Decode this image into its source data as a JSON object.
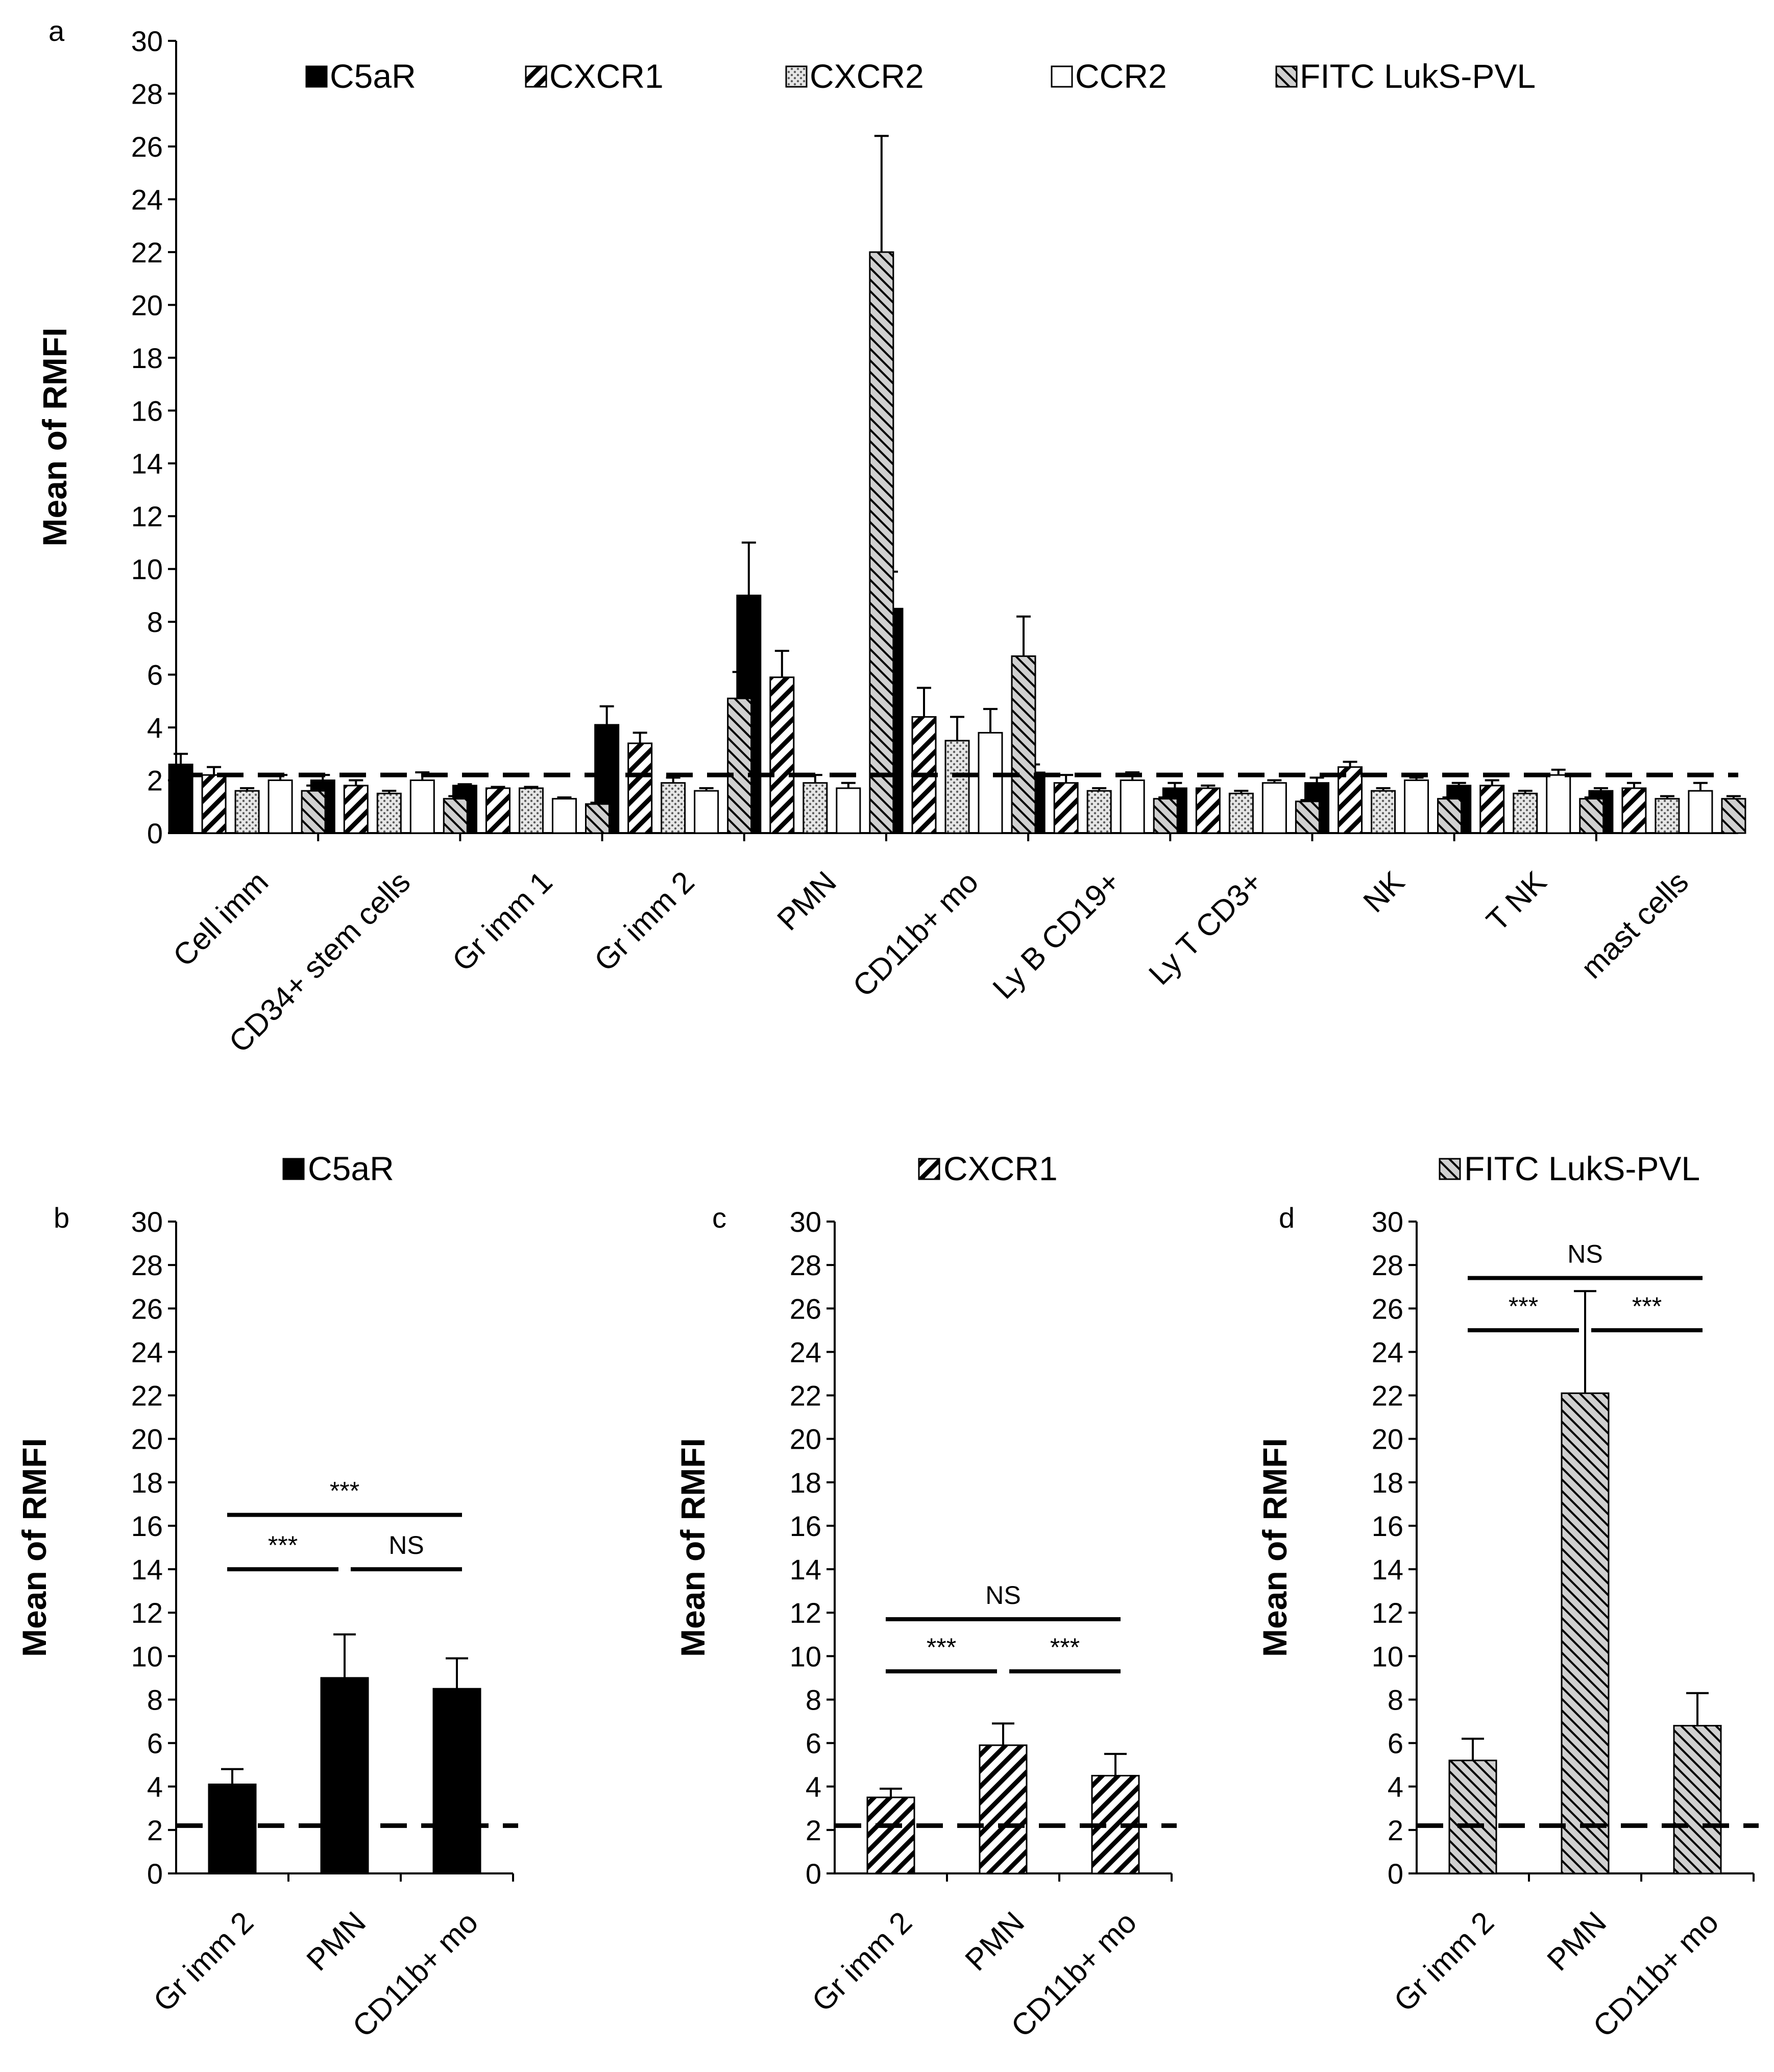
{
  "colors": {
    "ink": "#000000",
    "background": "#ffffff",
    "dots": "#9a9a9a",
    "hatch": "#bdbdbd"
  },
  "chart_data": [
    {
      "panel": "a",
      "type": "bar",
      "ylabel": "Mean of RMFI",
      "ylim": [
        0,
        30
      ],
      "ytick_step": 2,
      "threshold": 2.2,
      "categories": [
        "Cell imm",
        "CD34+ stem cells",
        "Gr imm 1",
        "Gr imm 2",
        "PMN",
        "CD11b+ mo",
        "Ly B CD19+",
        "Ly T CD3+",
        "NK",
        "T NK",
        "mast cells"
      ],
      "legend_position": "top",
      "series": [
        {
          "name": "C5aR",
          "pattern": "solid",
          "values": [
            2.6,
            2.0,
            1.8,
            4.1,
            9.0,
            8.5,
            2.3,
            1.7,
            1.9,
            1.8,
            1.6
          ],
          "errors": [
            0.4,
            0.2,
            0.05,
            0.7,
            2.0,
            1.4,
            0.3,
            0.2,
            0.2,
            0.1,
            0.1
          ]
        },
        {
          "name": "CXCR1",
          "pattern": "diag",
          "values": [
            2.2,
            1.8,
            1.7,
            3.4,
            5.9,
            4.4,
            1.9,
            1.7,
            2.5,
            1.8,
            1.7
          ],
          "errors": [
            0.3,
            0.2,
            0.05,
            0.4,
            1.0,
            1.1,
            0.3,
            0.1,
            0.2,
            0.2,
            0.2
          ]
        },
        {
          "name": "CXCR2",
          "pattern": "dots",
          "values": [
            1.6,
            1.5,
            1.7,
            1.9,
            1.9,
            3.5,
            1.6,
            1.5,
            1.6,
            1.5,
            1.3
          ],
          "errors": [
            0.1,
            0.1,
            0.05,
            0.2,
            0.3,
            0.9,
            0.1,
            0.1,
            0.1,
            0.1,
            0.1
          ]
        },
        {
          "name": "CCR2",
          "pattern": "white",
          "values": [
            2.0,
            2.0,
            1.3,
            1.6,
            1.7,
            3.8,
            2.0,
            1.9,
            2.0,
            2.2,
            1.6
          ],
          "errors": [
            0.2,
            0.3,
            0.05,
            0.1,
            0.2,
            0.9,
            0.3,
            0.1,
            0.1,
            0.2,
            0.3
          ]
        },
        {
          "name": "FITC LukS-PVL",
          "pattern": "hatch",
          "values": [
            1.6,
            1.3,
            1.1,
            5.1,
            22.0,
            6.7,
            1.3,
            1.2,
            1.3,
            1.3,
            1.3
          ],
          "errors": [
            0.2,
            0.1,
            0.05,
            1.0,
            4.4,
            1.5,
            0.05,
            0.05,
            0.05,
            0.05,
            0.1
          ]
        }
      ]
    },
    {
      "panel": "b",
      "type": "bar",
      "title": "C5aR",
      "pattern": "solid",
      "ylabel": "Mean of RMFI",
      "ylim": [
        0,
        30
      ],
      "ytick_step": 2,
      "threshold": 2.2,
      "categories": [
        "Gr imm 2",
        "PMN",
        "CD11b+ mo"
      ],
      "values": [
        4.1,
        9.0,
        8.5
      ],
      "errors": [
        0.7,
        2.0,
        1.4
      ],
      "comparisons": [
        {
          "from": 0,
          "to": 2,
          "y": 16.5,
          "label": "***"
        },
        {
          "from": 0,
          "to": 1,
          "y": 14.0,
          "label": "***"
        },
        {
          "from": 1,
          "to": 2,
          "y": 14.0,
          "label": "NS"
        }
      ]
    },
    {
      "panel": "c",
      "type": "bar",
      "title": "CXCR1",
      "pattern": "diag",
      "ylabel": "Mean of RMFI",
      "ylim": [
        0,
        30
      ],
      "ytick_step": 2,
      "threshold": 2.2,
      "categories": [
        "Gr imm 2",
        "PMN",
        "CD11b+ mo"
      ],
      "values": [
        3.5,
        5.9,
        4.5
      ],
      "errors": [
        0.4,
        1.0,
        1.0
      ],
      "comparisons": [
        {
          "from": 0,
          "to": 2,
          "y": 11.7,
          "label": "NS"
        },
        {
          "from": 0,
          "to": 1,
          "y": 9.3,
          "label": "***"
        },
        {
          "from": 1,
          "to": 2,
          "y": 9.3,
          "label": "***"
        }
      ]
    },
    {
      "panel": "d",
      "type": "bar",
      "title": "FITC LukS-PVL",
      "pattern": "hatch",
      "ylabel": "Mean of RMFI",
      "ylim": [
        0,
        30
      ],
      "ytick_step": 2,
      "threshold": 2.2,
      "categories": [
        "Gr imm 2",
        "PMN",
        "CD11b+ mo"
      ],
      "values": [
        5.2,
        22.1,
        6.8
      ],
      "errors": [
        1.0,
        4.7,
        1.5
      ],
      "comparisons": [
        {
          "from": 0,
          "to": 2,
          "y": 27.4,
          "label": "NS"
        },
        {
          "from": 0,
          "to": 1,
          "y": 25.0,
          "label": "***"
        },
        {
          "from": 1,
          "to": 2,
          "y": 25.0,
          "label": "***"
        }
      ]
    }
  ]
}
